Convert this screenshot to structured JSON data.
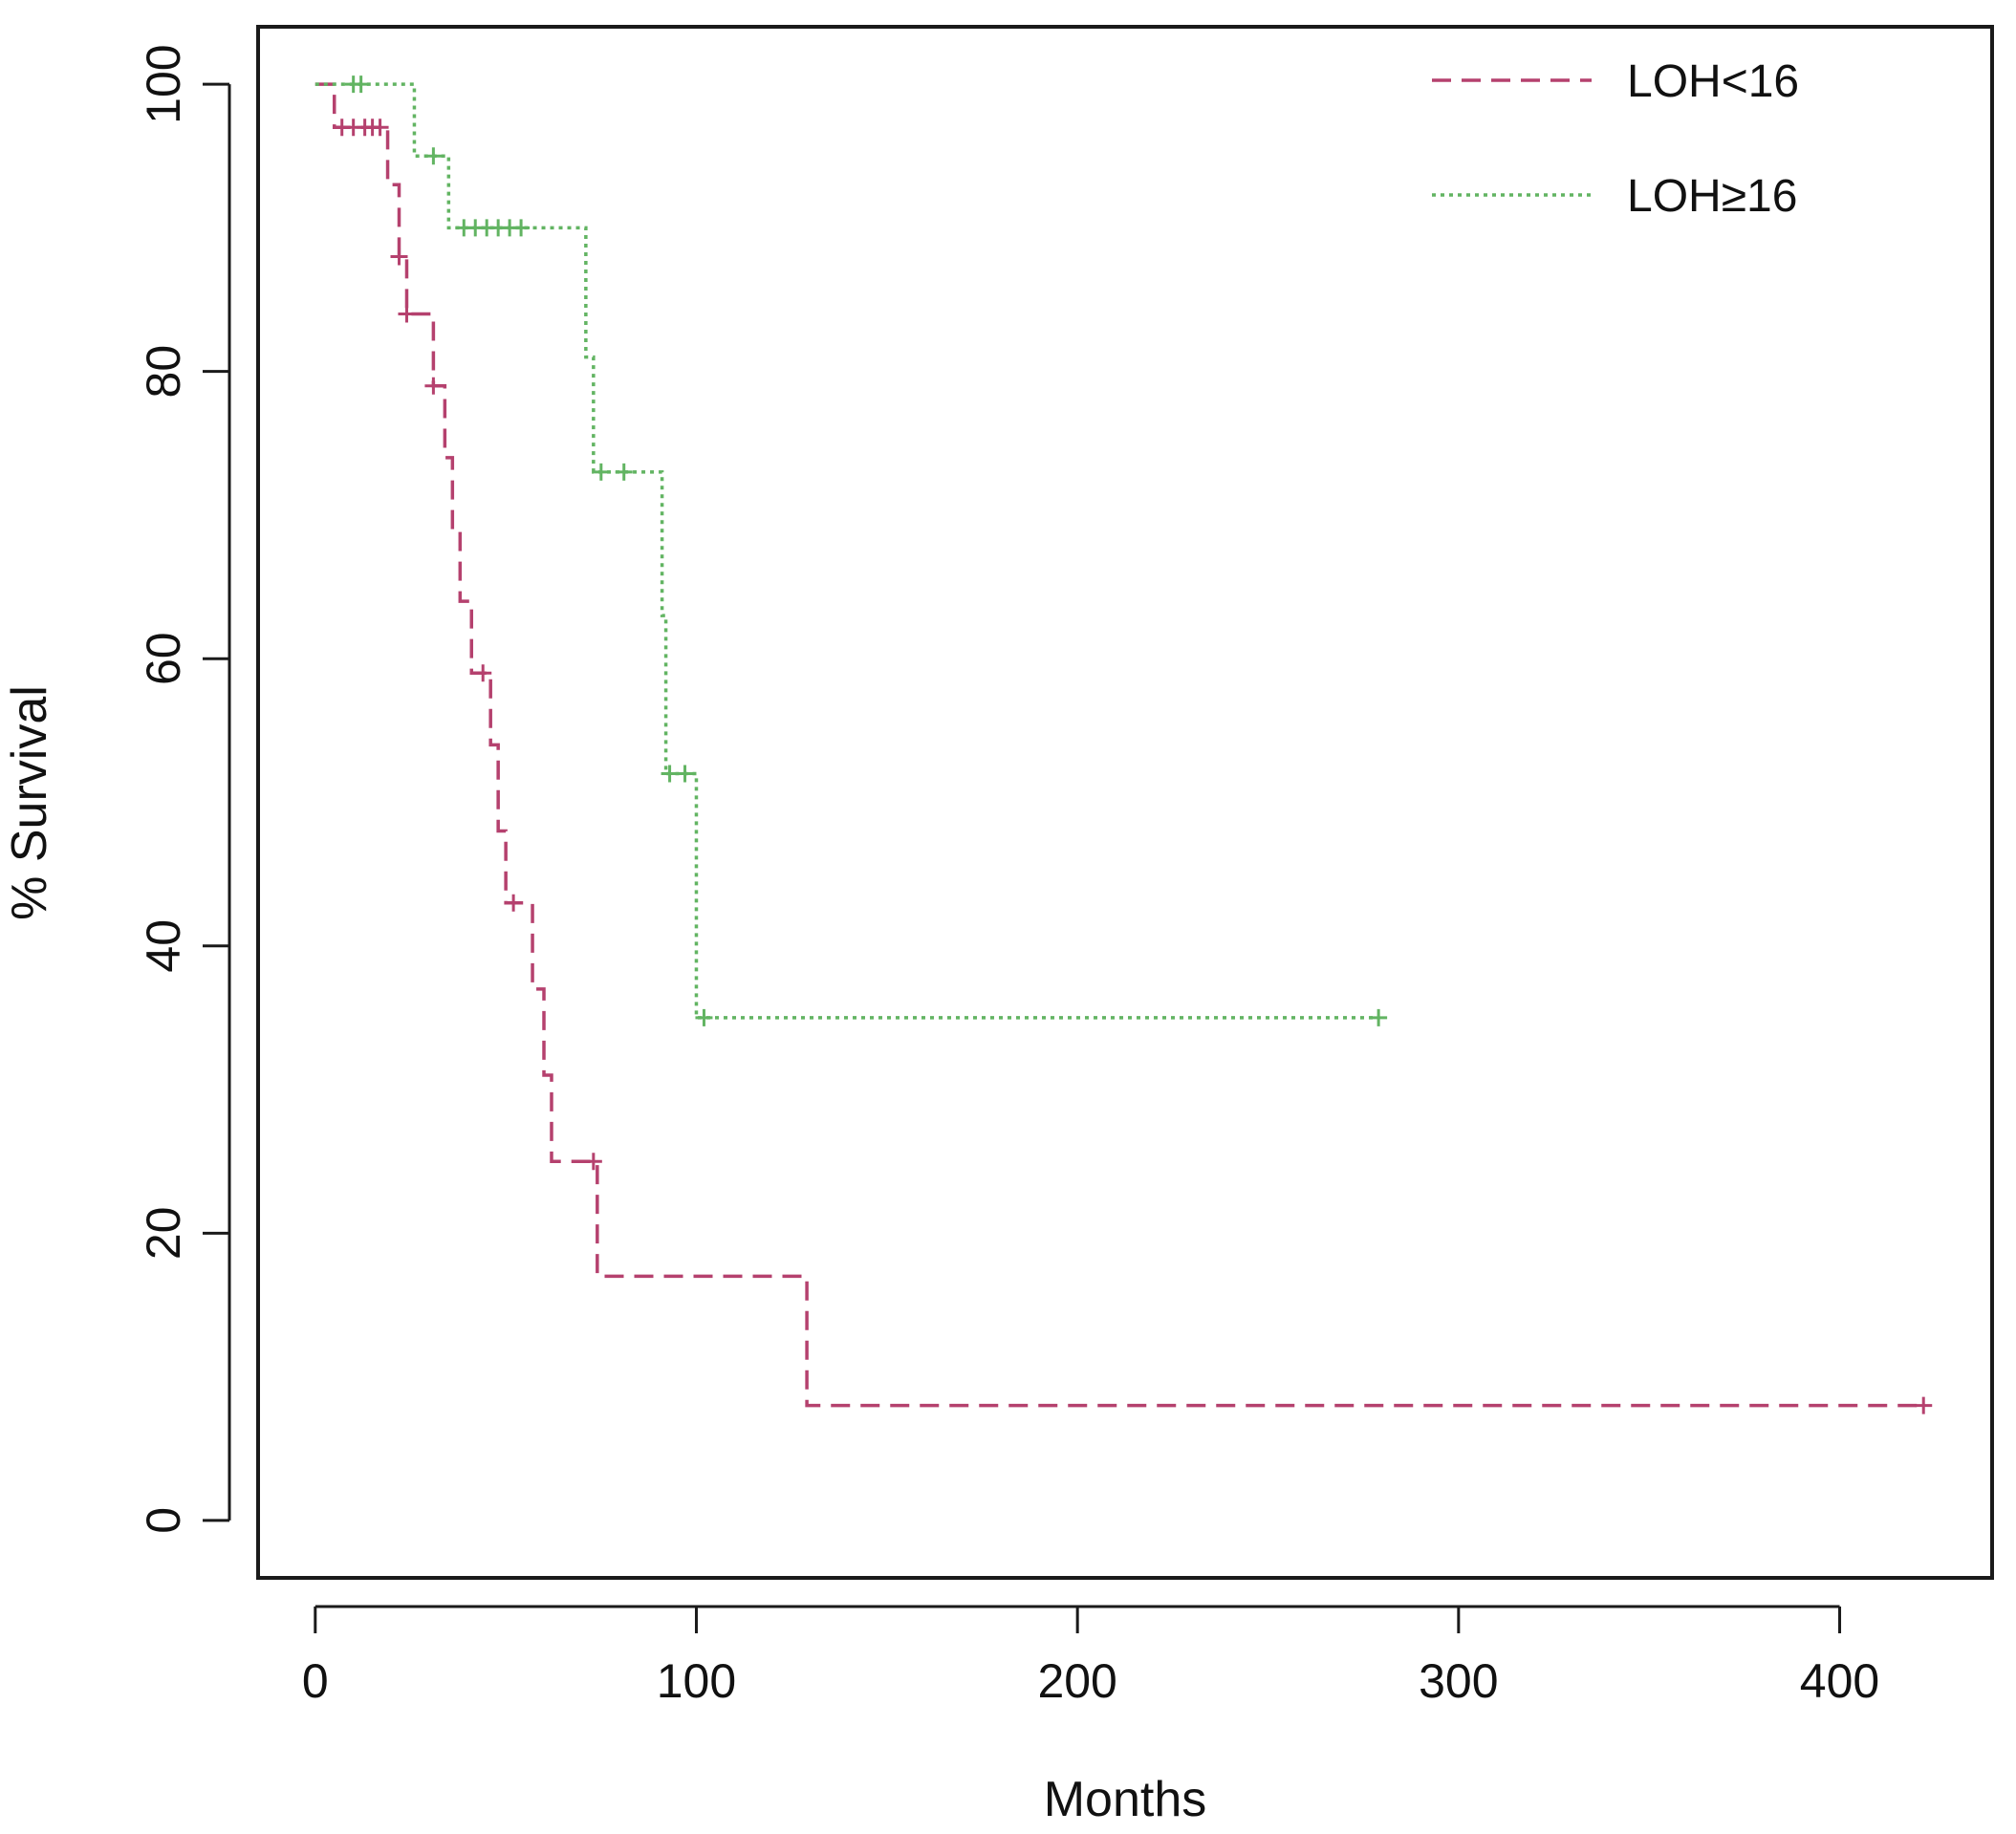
{
  "chart_data": {
    "type": "line",
    "subtype": "kaplan-meier-step",
    "title": "",
    "xlabel": "Months",
    "ylabel": "% Survival",
    "xlim": [
      -15,
      440
    ],
    "ylim": [
      -4,
      104
    ],
    "xticks": [
      0,
      100,
      200,
      300,
      400
    ],
    "xtick_labels": [
      "0",
      "100",
      "200",
      "300",
      "400"
    ],
    "yticks": [
      0,
      20,
      40,
      60,
      80,
      100
    ],
    "ytick_labels": [
      "0",
      "20",
      "40",
      "60",
      "80",
      "100"
    ],
    "grid": false,
    "legend_position": "top-right",
    "series": [
      {
        "name": "LOH<16",
        "color": "#b5416e",
        "line_style": "dashed",
        "steps": [
          [
            0,
            100
          ],
          [
            5,
            97
          ],
          [
            19,
            93
          ],
          [
            22,
            88
          ],
          [
            24,
            84
          ],
          [
            31,
            79
          ],
          [
            34,
            74
          ],
          [
            36,
            69
          ],
          [
            38,
            64
          ],
          [
            41,
            59
          ],
          [
            46,
            54
          ],
          [
            48,
            48
          ],
          [
            50,
            43
          ],
          [
            57,
            37
          ],
          [
            60,
            31
          ],
          [
            62,
            25
          ],
          [
            74,
            17
          ],
          [
            129,
            8
          ],
          [
            422,
            8
          ]
        ],
        "censored": [
          [
            7,
            97
          ],
          [
            10,
            97
          ],
          [
            13,
            97
          ],
          [
            15,
            97
          ],
          [
            17,
            97
          ],
          [
            22,
            88
          ],
          [
            24,
            84
          ],
          [
            31,
            79
          ],
          [
            44,
            59
          ],
          [
            52,
            43
          ],
          [
            73,
            25
          ],
          [
            422,
            8
          ]
        ]
      },
      {
        "name": "LOH≥16",
        "color": "#62b462",
        "line_style": "dotted",
        "steps": [
          [
            0,
            100
          ],
          [
            26,
            95
          ],
          [
            35,
            90
          ],
          [
            71,
            81
          ],
          [
            73,
            73
          ],
          [
            91,
            63
          ],
          [
            92,
            52
          ],
          [
            100,
            35
          ],
          [
            279,
            35
          ]
        ],
        "censored": [
          [
            10,
            100
          ],
          [
            12,
            100
          ],
          [
            31,
            95
          ],
          [
            39,
            90
          ],
          [
            42,
            90
          ],
          [
            45,
            90
          ],
          [
            48,
            90
          ],
          [
            51,
            90
          ],
          [
            54,
            90
          ],
          [
            75,
            73
          ],
          [
            81,
            73
          ],
          [
            93,
            52
          ],
          [
            97,
            52
          ],
          [
            102,
            35
          ],
          [
            279,
            35
          ]
        ]
      }
    ]
  }
}
